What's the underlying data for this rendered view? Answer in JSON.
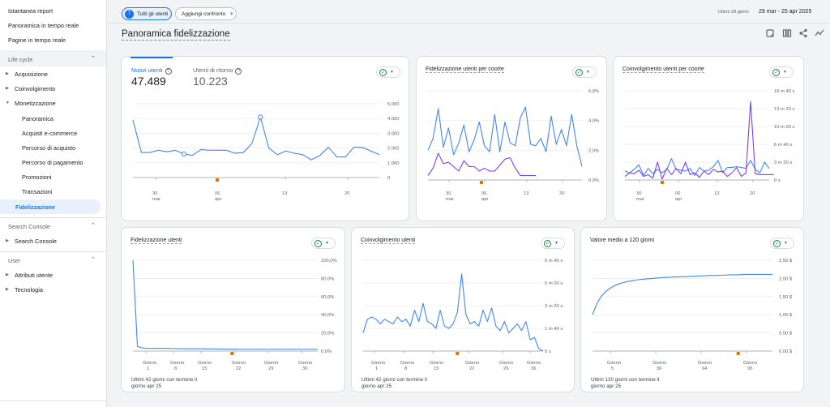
{
  "sidebar": {
    "top_items": [
      "Istantanea report",
      "Panoramica in tempo reale",
      "Pagine in tempo reale"
    ],
    "sections": [
      {
        "label": "Life cycle",
        "items": [
          {
            "label": "Acquisizione",
            "sub": false
          },
          {
            "label": "Coinvolgimento",
            "sub": false
          },
          {
            "label": "Monetizzazione",
            "sub": false
          },
          {
            "label": "Panoramica",
            "sub": true
          },
          {
            "label": "Acquisti e-commerce",
            "sub": true
          },
          {
            "label": "Percorso di acquisto",
            "sub": true
          },
          {
            "label": "Percorso di pagamento",
            "sub": true
          },
          {
            "label": "Promozioni",
            "sub": true
          },
          {
            "label": "Transazioni",
            "sub": true
          }
        ]
      },
      {
        "label": "Search Console",
        "items": [
          {
            "label": "Search Console"
          }
        ]
      },
      {
        "label": "User",
        "items": [
          {
            "label": "Attributi utente"
          },
          {
            "label": "Tecnologia"
          }
        ]
      }
    ],
    "active_item": "Fidelizzazione"
  },
  "topbar": {
    "segment_avatar": "T",
    "segment_label": "Tutti gli utenti",
    "add_compare_label": "Aggiungi confronto",
    "date_range_label": "Ultimi 28 giorni",
    "date_range_value": "29 mar - 25 apr 2025"
  },
  "page_title": "Panoramica fidelizzazione",
  "cards": {
    "overview": {
      "kpi1_label": "Nuovi utenti",
      "kpi1_value": "47.489",
      "kpi2_label": "Utenti di ritorno",
      "kpi2_value": "10.223"
    },
    "cohort_retention": {
      "title": "Fidelizzazione utenti per coorte"
    },
    "cohort_engagement": {
      "title": "Coinvolgimento utenti per coorte"
    },
    "user_retention": {
      "title": "Fidelizzazione utenti",
      "footer": [
        "Ultimi 42 giorni con termine il",
        "giorno apr 25"
      ]
    },
    "user_engagement": {
      "title": "Coinvolgimento utenti",
      "footer": [
        "Ultimi 42 giorni con termine il",
        "giorno apr 25"
      ]
    },
    "ltv": {
      "title": "Valore medio a 120 giorni",
      "footer": [
        "Ultimi 120 giorni con termine il",
        "giorno apr 25"
      ]
    }
  },
  "colors": {
    "blue": "#4285f4",
    "purple": "#7e3ff2",
    "orange": "#e37400",
    "grid": "#e8eaed"
  },
  "chart_data": [
    {
      "id": "overview",
      "type": "line",
      "xticks": [
        "30",
        "06",
        "13",
        "20"
      ],
      "xsub": [
        "mar",
        "apr",
        "",
        ""
      ],
      "yticks": [
        "5.000",
        "4.000",
        "3.000",
        "2.000",
        "1.000",
        "0"
      ],
      "ylim": [
        0,
        5000
      ],
      "series": [
        {
          "color": "#4285f4",
          "values": [
            3900,
            1700,
            1700,
            1850,
            1750,
            1850,
            1600,
            1500,
            1900,
            1850,
            1850,
            1850,
            1650,
            1700,
            2300,
            4100,
            2000,
            1550,
            1800,
            1650,
            1550,
            1200,
            1500,
            2050,
            1400,
            1400,
            2050,
            2050,
            1800,
            1550
          ]
        }
      ],
      "markers": [
        {
          "i": 6
        },
        {
          "i": 15
        }
      ]
    },
    {
      "id": "cohort_retention",
      "type": "line",
      "xticks": [
        "30",
        "06",
        "13",
        "20"
      ],
      "xsub": [
        "mar",
        "apr",
        "",
        ""
      ],
      "yticks": [
        "6,0%",
        "4,0%",
        "2,0%",
        "0,0%"
      ],
      "ylim": [
        0,
        6
      ],
      "series": [
        {
          "color": "#4285f4",
          "values": [
            2.0,
            2.8,
            4.8,
            2.2,
            3.5,
            1.7,
            2.5,
            3.7,
            1.9,
            2.7,
            3.9,
            2.3,
            1.9,
            4.4,
            1.9,
            3.9,
            2.5,
            2.3,
            4.2,
            4.9,
            2.4,
            2.3,
            2.8,
            1.9,
            4.3,
            2.4,
            3.4,
            2.3,
            4.4,
            2.3,
            0.9
          ]
        },
        {
          "color": "#7e3ff2",
          "values": [
            0.3,
            0.8,
            1.8,
            1.1,
            1.2,
            0.9,
            0.6,
            1.3,
            0.9,
            0.9,
            0.6,
            0.8,
            0.6,
            0.6,
            1.0,
            1.4,
            1.5,
            0.8,
            0.3,
            0.3,
            0.3,
            0.3
          ]
        }
      ]
    },
    {
      "id": "cohort_engagement",
      "type": "line",
      "xticks": [
        "30",
        "06",
        "13",
        "20"
      ],
      "xsub": [
        "mar",
        "apr",
        "",
        ""
      ],
      "yticks": [
        "16 m 40 s",
        "13 m 20 s",
        "10 m 00 s",
        "6 m 40 s",
        "3 m 20 s",
        "0 s"
      ],
      "ylim": [
        0,
        1000
      ],
      "series": [
        {
          "color": "#4285f4",
          "values": [
            100,
            80,
            120,
            170,
            50,
            130,
            70,
            120,
            80,
            120,
            240,
            120,
            110,
            100,
            130,
            50,
            140,
            100,
            110,
            150,
            220,
            80,
            140,
            140,
            150,
            140,
            130,
            220,
            120,
            80,
            200,
            130
          ]
        },
        {
          "color": "#7e3ff2",
          "values": [
            40,
            80,
            70,
            110,
            40,
            60,
            20,
            200,
            10,
            130,
            60,
            130,
            70,
            200,
            60,
            80,
            30,
            100,
            60,
            120,
            90,
            100,
            40,
            80,
            140,
            40,
            80,
            880,
            70,
            60,
            60,
            60,
            60
          ]
        }
      ],
      "markers": [
        {
          "i": 8
        }
      ]
    },
    {
      "id": "user_retention",
      "type": "line",
      "xticks": [
        "Giorno 1",
        "Giorno 8",
        "Giorno 15",
        "Giorno 22",
        "Giorno 29",
        "Giorno 36"
      ],
      "yticks": [
        "100,0%",
        "80,0%",
        "60,0%",
        "40,0%",
        "20,0%",
        "0,0%"
      ],
      "ylim": [
        0,
        100
      ],
      "series": [
        {
          "color": "#4285f4",
          "values": [
            100,
            5,
            3.5,
            3,
            3,
            3,
            3,
            3,
            3,
            2.8,
            2.6,
            2.6,
            2.5,
            2.5,
            2.5,
            2.5,
            2.4,
            2.4,
            2.3,
            2.3,
            2.2,
            2.2,
            2.1,
            2.1,
            2.0,
            2.0,
            2.0,
            2.0,
            2.0,
            2.0,
            2.0,
            2.0,
            2.0,
            2.0,
            2.0,
            2.0,
            2.0,
            2.0,
            2.0,
            2.0,
            2.0,
            2.0
          ]
        }
      ],
      "markers": [
        {
          "i": 22
        }
      ]
    },
    {
      "id": "user_engagement",
      "type": "line",
      "xticks": [
        "Giorno 1",
        "Giorno 8",
        "Giorno 15",
        "Giorno 22",
        "Giorno 29",
        "Giorno 36"
      ],
      "yticks": [
        "6 m 40 s",
        "5 m 00 s",
        "3 m 20 s",
        "1 m 40 s",
        "0 s"
      ],
      "ylim": [
        0,
        400
      ],
      "series": [
        {
          "color": "#4285f4",
          "values": [
            80,
            140,
            150,
            140,
            120,
            140,
            130,
            120,
            150,
            130,
            140,
            110,
            180,
            130,
            210,
            130,
            120,
            100,
            180,
            110,
            100,
            120,
            170,
            340,
            160,
            120,
            130,
            110,
            180,
            130,
            190,
            110,
            90,
            130,
            80,
            100,
            120,
            90,
            130,
            50,
            60,
            10,
            0
          ]
        }
      ],
      "markers": [
        {
          "i": 22
        }
      ]
    },
    {
      "id": "ltv",
      "type": "line",
      "xticks": [
        "Giorno 5",
        "Giorno 36",
        "Giorno 64",
        "Giorno 95"
      ],
      "yticks": [
        "2,50 $",
        "2,00 $",
        "1,50 $",
        "1,00 $",
        "0,50 $",
        "0,00 $"
      ],
      "ylim": [
        0,
        2.5
      ],
      "series": [
        {
          "color": "#4285f4",
          "values": [
            1.0,
            1.3,
            1.5,
            1.63,
            1.72,
            1.79,
            1.84,
            1.88,
            1.91,
            1.93,
            1.95,
            1.97,
            1.98,
            1.99,
            2.0,
            2.01,
            2.02,
            2.03,
            2.03,
            2.04,
            2.04,
            2.05,
            2.05,
            2.06,
            2.06,
            2.07,
            2.07,
            2.08,
            2.08,
            2.08,
            2.09,
            2.09,
            2.1,
            2.1,
            2.1,
            2.11,
            2.11,
            2.11,
            2.11,
            2.11,
            2.11,
            2.11,
            2.11
          ]
        }
      ],
      "markers": [
        {
          "i": 34
        }
      ]
    }
  ]
}
